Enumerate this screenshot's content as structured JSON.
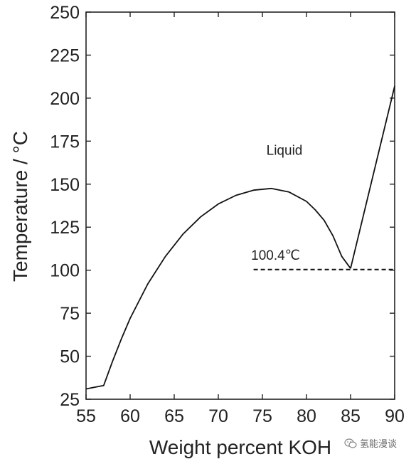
{
  "chart_data": {
    "type": "line",
    "xlabel": "Weight percent KOH",
    "ylabel": "Temperature / °C",
    "xlim": [
      55,
      90
    ],
    "ylim": [
      25,
      250
    ],
    "xticks": [
      55,
      60,
      65,
      70,
      75,
      80,
      85,
      90
    ],
    "yticks": [
      25,
      50,
      75,
      100,
      125,
      150,
      175,
      200,
      225,
      250
    ],
    "grid": false,
    "series": [
      {
        "line_style": "solid",
        "x": [
          55,
          56.5,
          57,
          58,
          59,
          60,
          62,
          64,
          66,
          68,
          70,
          72,
          74,
          76,
          78,
          80,
          81,
          82,
          83,
          84,
          85
        ],
        "y": [
          31,
          32.5,
          33,
          47,
          60,
          72,
          92,
          108,
          121,
          131,
          138.5,
          143.5,
          146.5,
          147.5,
          145.5,
          140,
          135,
          129,
          120,
          108,
          101
        ]
      },
      {
        "line_style": "solid",
        "x": [
          85,
          90
        ],
        "y": [
          101,
          207
        ]
      },
      {
        "line_style": "dashed",
        "x": [
          74,
          90
        ],
        "y": [
          100.4,
          100.4
        ]
      }
    ],
    "annotations": [
      {
        "text": "Liquid",
        "x": 77.5,
        "y": 167
      },
      {
        "text": "100.4℃",
        "x": 76.5,
        "y": 106
      }
    ]
  },
  "watermark": {
    "text": "氢能漫谈",
    "icon": "wechat-icon"
  }
}
